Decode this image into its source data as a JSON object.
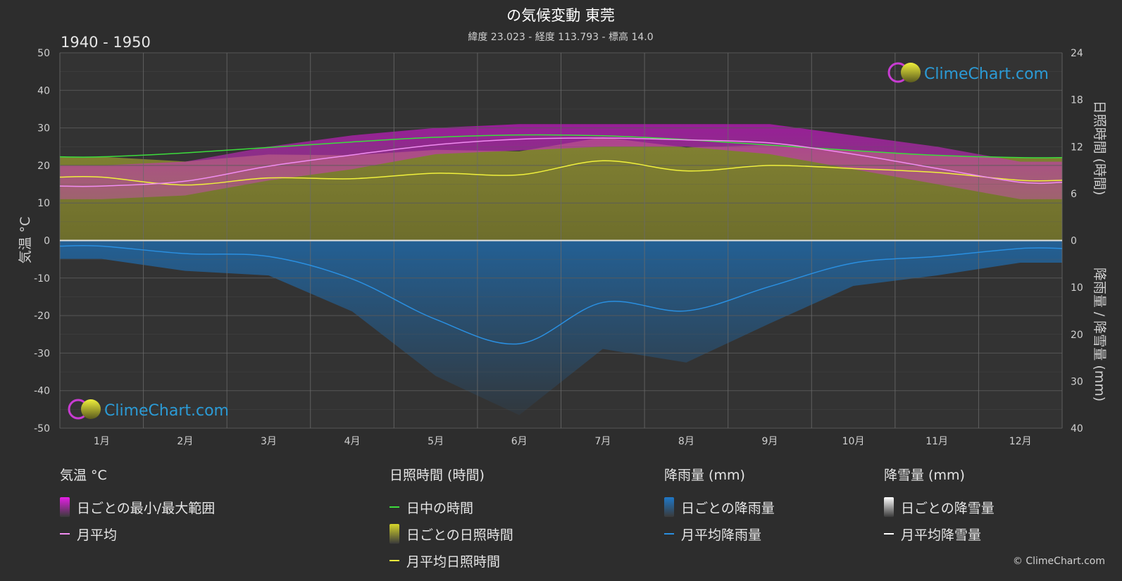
{
  "header": {
    "title": "の気候変動 東莞",
    "subtitle": "緯度 23.023 - 経度 113.793 - 標高 14.0",
    "period": "1940 - 1950"
  },
  "brand": {
    "name": "ClimeChart.com",
    "copyright": "© ClimeChart.com",
    "color": "#2b9bd6"
  },
  "axes": {
    "left_title": "気温 °C",
    "right_top_title": "日照時間 (時間)",
    "right_bottom_title": "降雨量 / 降雪量 (mm)"
  },
  "legend": {
    "groups": [
      {
        "heading": "気温 °C",
        "items": [
          {
            "label": "日ごとの最小/最大範囲",
            "kind": "block",
            "color": "#e61ee6"
          },
          {
            "label": "月平均",
            "kind": "line",
            "color": "#f08cf0"
          }
        ]
      },
      {
        "heading": "日照時間 (時間)",
        "items": [
          {
            "label": "日中の時間",
            "kind": "line",
            "color": "#3cdc3c"
          },
          {
            "label": "日ごとの日照時間",
            "kind": "block",
            "color": "#d6d62a"
          },
          {
            "label": "月平均日照時間",
            "kind": "line",
            "color": "#f0f03c"
          }
        ]
      },
      {
        "heading": "降雨量 (mm)",
        "items": [
          {
            "label": "日ごとの降雨量",
            "kind": "block",
            "color": "#1e78c8"
          },
          {
            "label": "月平均降雨量",
            "kind": "line",
            "color": "#2a8fe0"
          }
        ]
      },
      {
        "heading": "降雪量 (mm)",
        "items": [
          {
            "label": "日ごとの降雪量",
            "kind": "block",
            "color": "#ffffff"
          },
          {
            "label": "月平均降雪量",
            "kind": "line",
            "color": "#ffffff"
          }
        ]
      }
    ]
  },
  "chart_data": {
    "type": "line",
    "categories": [
      "1月",
      "2月",
      "3月",
      "4月",
      "5月",
      "6月",
      "7月",
      "8月",
      "9月",
      "10月",
      "11月",
      "12月"
    ],
    "y_left": {
      "ylim": [
        -50,
        50
      ],
      "ticks": [
        50,
        40,
        30,
        20,
        10,
        0,
        -10,
        -20,
        -30,
        -40,
        -50
      ]
    },
    "y_right_top": {
      "ylim": [
        0,
        24
      ],
      "ticks": [
        24,
        18,
        12,
        6,
        0
      ]
    },
    "y_right_bottom": {
      "ylim": [
        0,
        40
      ],
      "ticks": [
        10,
        20,
        30,
        40
      ]
    },
    "grid": true,
    "series": [
      {
        "name": "日中の時間",
        "axis": "sunshine_hours",
        "color": "#3cdc3c",
        "values": [
          10.7,
          11.2,
          11.9,
          12.6,
          13.2,
          13.5,
          13.4,
          12.9,
          12.2,
          11.5,
          10.9,
          10.6
        ]
      },
      {
        "name": "月平均日照時間",
        "axis": "sunshine_hours",
        "color": "#f0f03c",
        "values": [
          8.1,
          7.1,
          8.0,
          7.9,
          8.6,
          8.4,
          10.2,
          8.9,
          9.6,
          9.2,
          8.7,
          7.7
        ]
      },
      {
        "name": "月平均",
        "axis": "temperature",
        "color": "#f08cf0",
        "values": [
          14.5,
          15.8,
          19.8,
          22.8,
          25.5,
          27.0,
          27.3,
          26.8,
          26.0,
          23.0,
          19.2,
          15.5
        ]
      },
      {
        "name": "月平均降雨量",
        "axis": "precipitation_mm",
        "color": "#2a8fe0",
        "values": [
          1.2,
          2.8,
          3.4,
          8.2,
          16.8,
          22.0,
          13.2,
          15.0,
          9.8,
          4.8,
          3.4,
          1.7
        ]
      },
      {
        "name": "月平均降雪量",
        "axis": "precipitation_mm",
        "color": "#ffffff",
        "values": [
          0,
          0,
          0,
          0,
          0,
          0,
          0,
          0,
          0,
          0,
          0,
          0
        ]
      }
    ],
    "daily_temperature_range": {
      "min": [
        11,
        12,
        16,
        19,
        23,
        24,
        25,
        25,
        23,
        19,
        15,
        11
      ],
      "max": [
        20,
        21,
        25,
        28,
        30,
        31,
        31,
        31,
        31,
        28,
        25,
        21
      ]
    }
  }
}
